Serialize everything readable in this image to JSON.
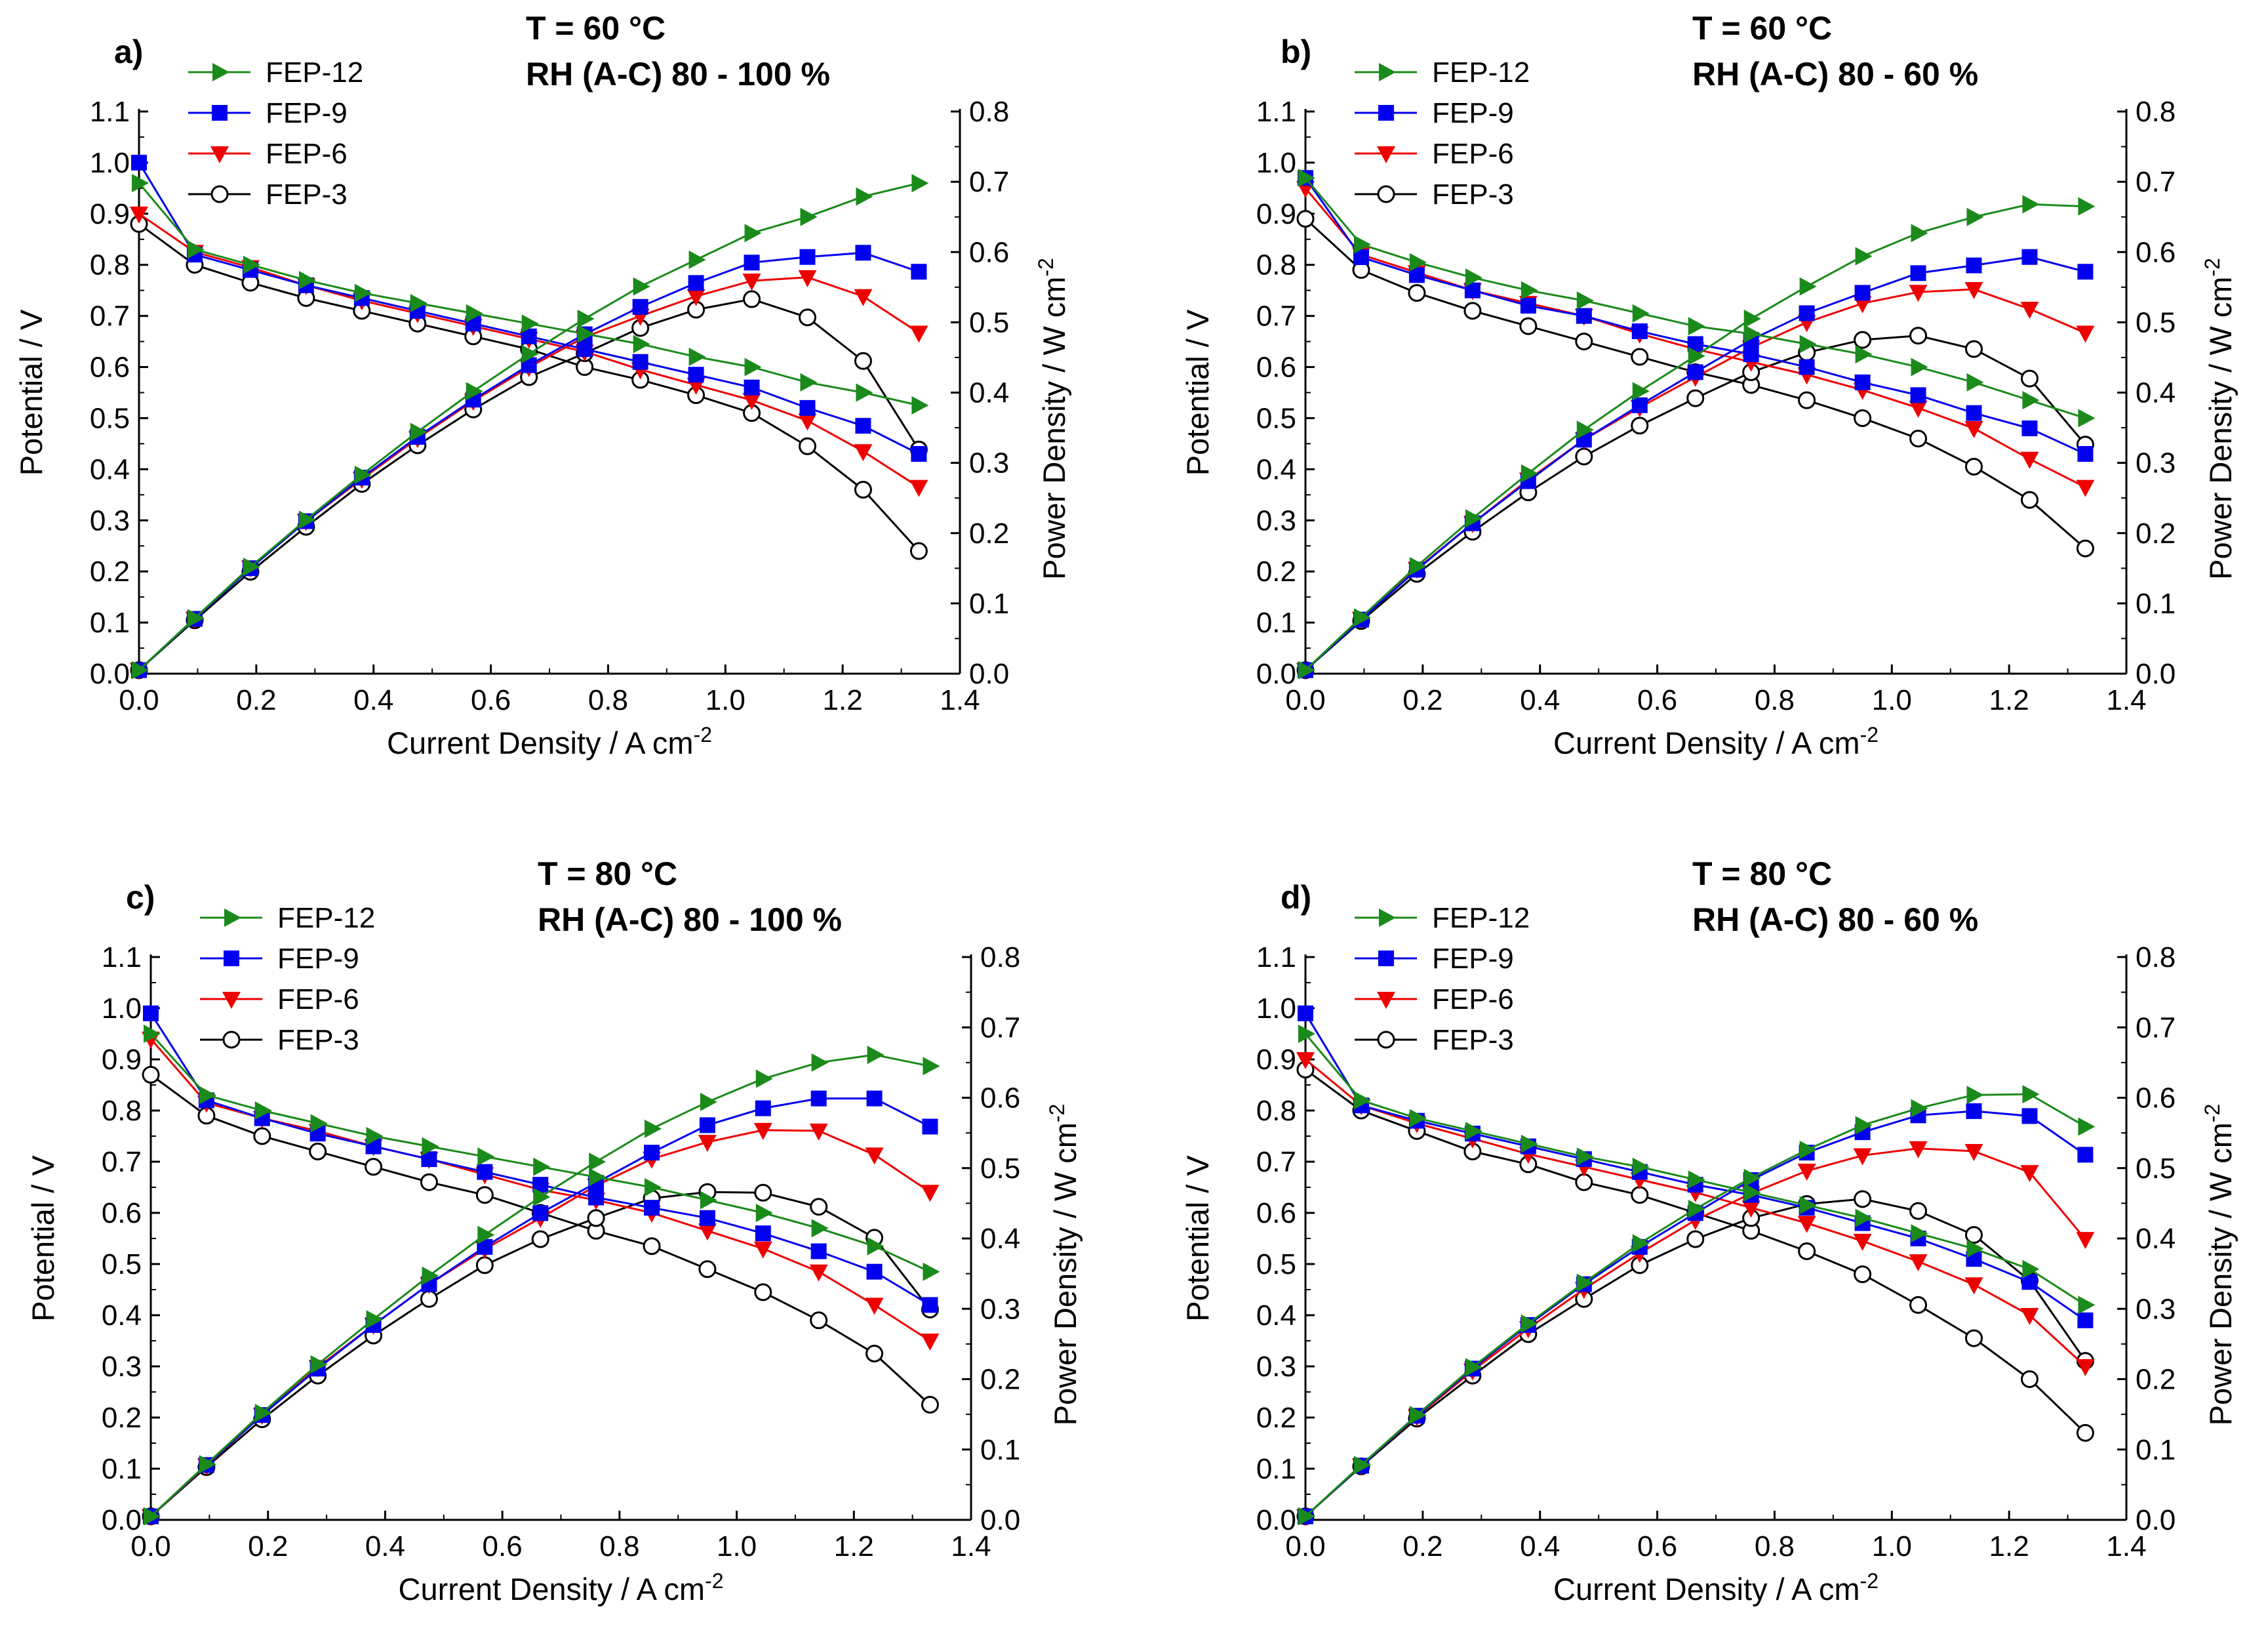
{
  "colors": {
    "FEP-12": "#1a8a1a",
    "FEP-9": "#0000ee",
    "FEP-6": "#ee0000",
    "FEP-3": "#000000"
  },
  "chart_data": [
    {
      "type": "line",
      "panel": "a)",
      "title": "T = 60 °C",
      "subtitle": "RH (A-C) 80 - 100 %",
      "xlabel": "Current Density / A cm",
      "xlabel_sup": "-2",
      "ylabel": "Potential / V",
      "y2label": "Power Density / W cm",
      "y2label_sup": "-2",
      "xlim": [
        0,
        1.4
      ],
      "ylim": [
        0,
        1.1
      ],
      "y2lim": [
        0,
        0.8
      ],
      "xticks": [
        "0.0",
        "0.2",
        "0.4",
        "0.6",
        "0.8",
        "1.0",
        "1.2",
        "1.4"
      ],
      "yticks": [
        "0.0",
        "0.1",
        "0.2",
        "0.3",
        "0.4",
        "0.5",
        "0.6",
        "0.7",
        "0.8",
        "0.9",
        "1.0",
        "1.1"
      ],
      "y2ticks": [
        "0.0",
        "0.1",
        "0.2",
        "0.3",
        "0.4",
        "0.5",
        "0.6",
        "0.7",
        "0.8"
      ],
      "x": [
        0.0,
        0.095,
        0.19,
        0.285,
        0.38,
        0.475,
        0.57,
        0.665,
        0.76,
        0.855,
        0.95,
        1.045,
        1.14,
        1.235,
        1.33
      ],
      "series": [
        {
          "name": "FEP-12",
          "marker": "tri-right",
          "voltage": [
            0.96,
            0.83,
            0.8,
            0.77,
            0.745,
            0.725,
            0.705,
            0.685,
            0.665,
            0.645,
            0.62,
            0.6,
            0.57,
            0.55,
            0.525
          ],
          "power": [
            0.005,
            0.079,
            0.152,
            0.219,
            0.283,
            0.344,
            0.402,
            0.455,
            0.505,
            0.551,
            0.589,
            0.627,
            0.65,
            0.679,
            0.698
          ]
        },
        {
          "name": "FEP-9",
          "marker": "square",
          "voltage": [
            1.0,
            0.82,
            0.79,
            0.76,
            0.735,
            0.71,
            0.685,
            0.66,
            0.635,
            0.61,
            0.585,
            0.56,
            0.52,
            0.485,
            0.43
          ],
          "power": [
            0.005,
            0.078,
            0.15,
            0.217,
            0.279,
            0.337,
            0.39,
            0.439,
            0.483,
            0.522,
            0.556,
            0.585,
            0.593,
            0.599,
            0.572
          ]
        },
        {
          "name": "FEP-6",
          "marker": "tri-down",
          "voltage": [
            0.9,
            0.825,
            0.795,
            0.76,
            0.73,
            0.705,
            0.68,
            0.655,
            0.63,
            0.595,
            0.565,
            0.535,
            0.495,
            0.435,
            0.365
          ],
          "power": [
            0.005,
            0.078,
            0.151,
            0.217,
            0.277,
            0.335,
            0.388,
            0.436,
            0.479,
            0.509,
            0.537,
            0.559,
            0.564,
            0.537,
            0.485
          ]
        },
        {
          "name": "FEP-3",
          "marker": "circle-open",
          "voltage": [
            0.88,
            0.8,
            0.765,
            0.735,
            0.71,
            0.685,
            0.66,
            0.635,
            0.6,
            0.575,
            0.545,
            0.51,
            0.445,
            0.36,
            0.24
          ],
          "power": [
            0.005,
            0.076,
            0.145,
            0.209,
            0.27,
            0.325,
            0.376,
            0.422,
            0.456,
            0.492,
            0.518,
            0.533,
            0.507,
            0.445,
            0.319
          ]
        }
      ]
    },
    {
      "type": "line",
      "panel": "b)",
      "title": "T = 60 °C",
      "subtitle": "RH (A-C) 80 - 60 %",
      "xlabel": "Current Density / A cm",
      "xlabel_sup": "-2",
      "ylabel": "Potential / V",
      "y2label": "Power Density / W cm",
      "y2label_sup": "-2",
      "xlim": [
        0,
        1.4
      ],
      "ylim": [
        0,
        1.1
      ],
      "y2lim": [
        0,
        0.8
      ],
      "xticks": [
        "0.0",
        "0.2",
        "0.4",
        "0.6",
        "0.8",
        "1.0",
        "1.2",
        "1.4"
      ],
      "yticks": [
        "0.0",
        "0.1",
        "0.2",
        "0.3",
        "0.4",
        "0.5",
        "0.6",
        "0.7",
        "0.8",
        "0.9",
        "1.0",
        "1.1"
      ],
      "y2ticks": [
        "0.0",
        "0.1",
        "0.2",
        "0.3",
        "0.4",
        "0.5",
        "0.6",
        "0.7",
        "0.8"
      ],
      "x": [
        0.0,
        0.095,
        0.19,
        0.285,
        0.38,
        0.475,
        0.57,
        0.665,
        0.76,
        0.855,
        0.95,
        1.045,
        1.14,
        1.235,
        1.33
      ],
      "series": [
        {
          "name": "FEP-12",
          "marker": "tri-right",
          "voltage": [
            0.97,
            0.84,
            0.805,
            0.775,
            0.75,
            0.73,
            0.705,
            0.68,
            0.665,
            0.645,
            0.625,
            0.6,
            0.57,
            0.535,
            0.5
          ],
          "power": [
            0.005,
            0.08,
            0.153,
            0.221,
            0.285,
            0.347,
            0.402,
            0.452,
            0.505,
            0.551,
            0.594,
            0.627,
            0.65,
            0.668,
            0.665
          ]
        },
        {
          "name": "FEP-9",
          "marker": "square",
          "voltage": [
            0.97,
            0.815,
            0.78,
            0.75,
            0.72,
            0.7,
            0.67,
            0.645,
            0.625,
            0.6,
            0.57,
            0.545,
            0.51,
            0.48,
            0.43
          ],
          "power": [
            0.005,
            0.077,
            0.148,
            0.214,
            0.274,
            0.333,
            0.382,
            0.429,
            0.475,
            0.513,
            0.542,
            0.57,
            0.581,
            0.593,
            0.572
          ]
        },
        {
          "name": "FEP-6",
          "marker": "tri-down",
          "voltage": [
            0.95,
            0.82,
            0.785,
            0.75,
            0.725,
            0.7,
            0.665,
            0.635,
            0.61,
            0.585,
            0.555,
            0.52,
            0.48,
            0.42,
            0.365
          ],
          "power": [
            0.005,
            0.078,
            0.149,
            0.214,
            0.276,
            0.333,
            0.379,
            0.422,
            0.464,
            0.5,
            0.527,
            0.543,
            0.547,
            0.519,
            0.485
          ]
        },
        {
          "name": "FEP-3",
          "marker": "circle-open",
          "voltage": [
            0.89,
            0.79,
            0.745,
            0.71,
            0.68,
            0.65,
            0.62,
            0.59,
            0.565,
            0.535,
            0.5,
            0.46,
            0.405,
            0.34,
            0.245
          ],
          "power": [
            0.005,
            0.075,
            0.142,
            0.202,
            0.258,
            0.309,
            0.353,
            0.392,
            0.429,
            0.457,
            0.475,
            0.481,
            0.462,
            0.42,
            0.326
          ]
        }
      ]
    },
    {
      "type": "line",
      "panel": "c)",
      "title": "T = 80 °C",
      "subtitle": "RH (A-C) 80 - 100 %",
      "xlabel": "Current Density / A cm",
      "xlabel_sup": "-2",
      "ylabel": "Potential / V",
      "y2label": "Power Density / W cm",
      "y2label_sup": "-2",
      "xlim": [
        0,
        1.4
      ],
      "ylim": [
        0,
        1.1
      ],
      "y2lim": [
        0,
        0.8
      ],
      "xticks": [
        "0.0",
        "0.2",
        "0.4",
        "0.6",
        "0.8",
        "1.0",
        "1.2",
        "1.4"
      ],
      "yticks": [
        "0.0",
        "0.1",
        "0.2",
        "0.3",
        "0.4",
        "0.5",
        "0.6",
        "0.7",
        "0.8",
        "0.9",
        "1.0",
        "1.1"
      ],
      "y2ticks": [
        "0.0",
        "0.1",
        "0.2",
        "0.3",
        "0.4",
        "0.5",
        "0.6",
        "0.7",
        "0.8"
      ],
      "x": [
        0.0,
        0.095,
        0.19,
        0.285,
        0.38,
        0.475,
        0.57,
        0.665,
        0.76,
        0.855,
        0.95,
        1.045,
        1.14,
        1.235,
        1.33
      ],
      "series": [
        {
          "name": "FEP-12",
          "marker": "tri-right",
          "voltage": [
            0.95,
            0.83,
            0.8,
            0.775,
            0.75,
            0.73,
            0.71,
            0.69,
            0.67,
            0.65,
            0.625,
            0.6,
            0.57,
            0.535,
            0.485
          ],
          "power": [
            0.005,
            0.079,
            0.152,
            0.221,
            0.285,
            0.347,
            0.405,
            0.459,
            0.509,
            0.556,
            0.594,
            0.627,
            0.65,
            0.661,
            0.645
          ]
        },
        {
          "name": "FEP-9",
          "marker": "square",
          "voltage": [
            0.99,
            0.82,
            0.785,
            0.755,
            0.73,
            0.705,
            0.68,
            0.655,
            0.63,
            0.61,
            0.59,
            0.56,
            0.525,
            0.485,
            0.42
          ],
          "power": [
            0.005,
            0.078,
            0.149,
            0.215,
            0.277,
            0.335,
            0.388,
            0.436,
            0.479,
            0.522,
            0.561,
            0.585,
            0.599,
            0.599,
            0.559
          ]
        },
        {
          "name": "FEP-6",
          "marker": "tri-down",
          "voltage": [
            0.94,
            0.815,
            0.785,
            0.76,
            0.73,
            0.705,
            0.675,
            0.645,
            0.625,
            0.6,
            0.565,
            0.53,
            0.485,
            0.42,
            0.35
          ],
          "power": [
            0.005,
            0.077,
            0.149,
            0.217,
            0.277,
            0.335,
            0.385,
            0.429,
            0.475,
            0.513,
            0.537,
            0.554,
            0.553,
            0.519,
            0.466
          ]
        },
        {
          "name": "FEP-3",
          "marker": "circle-open",
          "voltage": [
            0.87,
            0.79,
            0.75,
            0.72,
            0.69,
            0.66,
            0.635,
            0.6,
            0.565,
            0.535,
            0.49,
            0.445,
            0.39,
            0.325,
            0.225
          ],
          "power": [
            0.005,
            0.075,
            0.143,
            0.205,
            0.262,
            0.314,
            0.362,
            0.399,
            0.429,
            0.457,
            0.466,
            0.465,
            0.445,
            0.401,
            0.299
          ]
        }
      ]
    },
    {
      "type": "line",
      "panel": "d)",
      "title": "T = 80 °C",
      "subtitle": "RH (A-C) 80 - 60 %",
      "xlabel": "Current Density / A cm",
      "xlabel_sup": "-2",
      "ylabel": "Potential / V",
      "y2label": "Power Density / W cm",
      "y2label_sup": "-2",
      "xlim": [
        0,
        1.4
      ],
      "ylim": [
        0,
        1.1
      ],
      "y2lim": [
        0,
        0.8
      ],
      "xticks": [
        "0.0",
        "0.2",
        "0.4",
        "0.6",
        "0.8",
        "1.0",
        "1.2",
        "1.4"
      ],
      "yticks": [
        "0.0",
        "0.1",
        "0.2",
        "0.3",
        "0.4",
        "0.5",
        "0.6",
        "0.7",
        "0.8",
        "0.9",
        "1.0",
        "1.1"
      ],
      "y2ticks": [
        "0.0",
        "0.1",
        "0.2",
        "0.3",
        "0.4",
        "0.5",
        "0.6",
        "0.7",
        "0.8"
      ],
      "x": [
        0.0,
        0.095,
        0.19,
        0.285,
        0.38,
        0.475,
        0.57,
        0.665,
        0.76,
        0.855,
        0.95,
        1.045,
        1.14,
        1.235,
        1.33
      ],
      "series": [
        {
          "name": "FEP-12",
          "marker": "tri-right",
          "voltage": [
            0.95,
            0.82,
            0.785,
            0.76,
            0.735,
            0.71,
            0.69,
            0.665,
            0.64,
            0.615,
            0.59,
            0.56,
            0.53,
            0.49,
            0.42
          ],
          "power": [
            0.005,
            0.078,
            0.149,
            0.217,
            0.279,
            0.337,
            0.393,
            0.442,
            0.486,
            0.526,
            0.561,
            0.585,
            0.604,
            0.605,
            0.559
          ]
        },
        {
          "name": "FEP-9",
          "marker": "square",
          "voltage": [
            0.99,
            0.81,
            0.78,
            0.755,
            0.73,
            0.705,
            0.68,
            0.655,
            0.635,
            0.61,
            0.58,
            0.55,
            0.51,
            0.465,
            0.39
          ],
          "power": [
            0.005,
            0.077,
            0.148,
            0.215,
            0.277,
            0.335,
            0.388,
            0.436,
            0.483,
            0.522,
            0.551,
            0.575,
            0.581,
            0.574,
            0.519
          ]
        },
        {
          "name": "FEP-6",
          "marker": "tri-down",
          "voltage": [
            0.9,
            0.81,
            0.775,
            0.745,
            0.715,
            0.69,
            0.665,
            0.64,
            0.61,
            0.58,
            0.545,
            0.505,
            0.46,
            0.4,
            0.3
          ],
          "power": [
            0.005,
            0.077,
            0.147,
            0.212,
            0.272,
            0.328,
            0.379,
            0.426,
            0.464,
            0.496,
            0.518,
            0.528,
            0.524,
            0.494,
            0.399
          ]
        },
        {
          "name": "FEP-3",
          "marker": "circle-open",
          "voltage": [
            0.88,
            0.8,
            0.76,
            0.72,
            0.695,
            0.66,
            0.635,
            0.6,
            0.565,
            0.525,
            0.48,
            0.42,
            0.355,
            0.275,
            0.17
          ],
          "power": [
            0.005,
            0.076,
            0.144,
            0.205,
            0.264,
            0.314,
            0.362,
            0.399,
            0.429,
            0.449,
            0.456,
            0.439,
            0.405,
            0.34,
            0.226
          ]
        }
      ]
    }
  ]
}
